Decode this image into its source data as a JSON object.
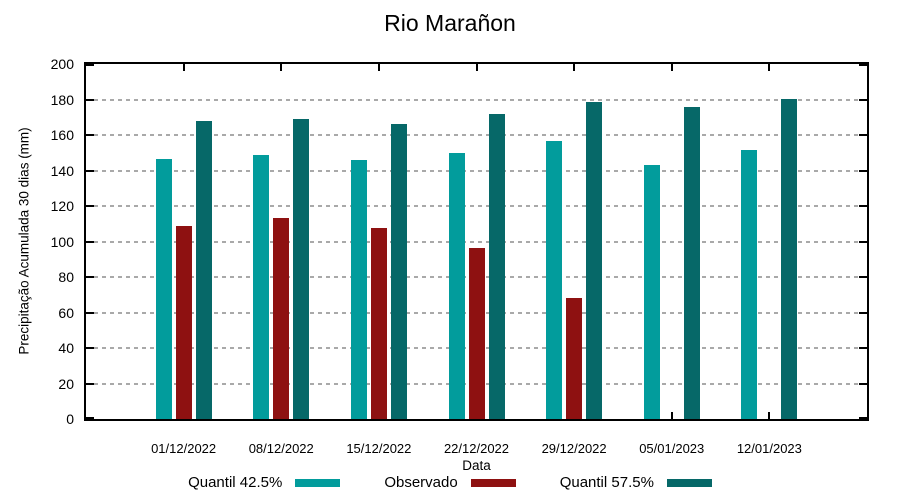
{
  "chart_data": {
    "type": "bar",
    "title": "Rio Marañon",
    "xlabel": "Data",
    "ylabel": "Precipitação Acumulada 30 dias (mm)",
    "ylim": [
      0,
      200
    ],
    "yticks": [
      0,
      20,
      40,
      60,
      80,
      100,
      120,
      140,
      160,
      180,
      200
    ],
    "grid": true,
    "legend_position": "bottom",
    "categories": [
      "01/12/2022",
      "08/12/2022",
      "15/12/2022",
      "22/12/2022",
      "29/12/2022",
      "05/01/2023",
      "12/01/2023"
    ],
    "series": [
      {
        "key": "quantil-42-5",
        "name": "Quantil 42.5%",
        "color": "#029c9c",
        "values": [
          146.5,
          149,
          146,
          150,
          156.5,
          143,
          151.5
        ]
      },
      {
        "key": "observado",
        "name": "Observado",
        "color": "#8e1111",
        "values": [
          109,
          113,
          107.5,
          96.5,
          68,
          null,
          null
        ]
      },
      {
        "key": "quantil-57-5",
        "name": "Quantil 57.5%",
        "color": "#066868",
        "values": [
          168,
          169,
          166,
          172,
          178.5,
          176,
          180.5
        ]
      }
    ]
  },
  "colors": {
    "axis": "#000000",
    "grid": "#a9a9a9",
    "background": "#ffffff"
  }
}
